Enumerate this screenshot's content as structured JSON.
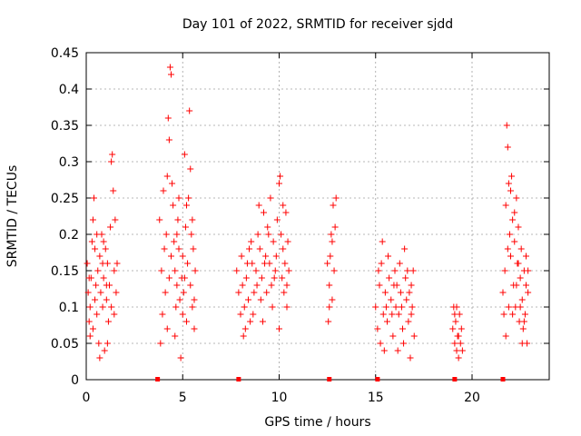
{
  "chart_data": {
    "type": "scatter",
    "title": "Day 101 of 2022, SRMTID for receiver sjdd",
    "xlabel": "GPS time / hours",
    "ylabel": "SRMTID / TECUs",
    "xlim": [
      0,
      24
    ],
    "ylim": [
      0,
      0.45
    ],
    "x_ticks": [
      0,
      5,
      10,
      15,
      20
    ],
    "x_tick_labels": [
      "0",
      "5",
      "10",
      "15",
      "20"
    ],
    "y_ticks": [
      0,
      0.05,
      0.1,
      0.15,
      0.2,
      0.25,
      0.3,
      0.35,
      0.4,
      0.45
    ],
    "y_tick_labels": [
      "0",
      "0.05",
      "0.1",
      "0.15",
      "0.2",
      "0.25",
      "0.3",
      "0.35",
      "0.4",
      "0.45"
    ],
    "grid": true,
    "marker": "plus",
    "series": [
      {
        "name": "SRMTID",
        "color": "#ff0000",
        "points": [
          [
            0.05,
            0.16
          ],
          [
            0.1,
            0.12
          ],
          [
            0.15,
            0.08
          ],
          [
            0.2,
            0.1
          ],
          [
            0.25,
            0.14
          ],
          [
            0.3,
            0.19
          ],
          [
            0.35,
            0.07
          ],
          [
            0.4,
            0.25
          ],
          [
            0.45,
            0.11
          ],
          [
            0.5,
            0.13
          ],
          [
            0.55,
            0.09
          ],
          [
            0.6,
            0.15
          ],
          [
            0.65,
            0.05
          ],
          [
            0.7,
            0.17
          ],
          [
            0.75,
            0.12
          ],
          [
            0.8,
            0.2
          ],
          [
            0.85,
            0.1
          ],
          [
            0.9,
            0.14
          ],
          [
            0.95,
            0.04
          ],
          [
            1.0,
            0.18
          ],
          [
            1.05,
            0.11
          ],
          [
            1.1,
            0.16
          ],
          [
            1.15,
            0.08
          ],
          [
            1.2,
            0.13
          ],
          [
            1.25,
            0.21
          ],
          [
            1.3,
            0.3
          ],
          [
            1.35,
            0.31
          ],
          [
            1.4,
            0.26
          ],
          [
            1.45,
            0.15
          ],
          [
            1.5,
            0.22
          ],
          [
            1.55,
            0.12
          ],
          [
            1.6,
            0.16
          ],
          [
            0.2,
            0.06
          ],
          [
            0.35,
            0.22
          ],
          [
            0.55,
            0.2
          ],
          [
            0.7,
            0.03
          ],
          [
            0.9,
            0.19
          ],
          [
            1.1,
            0.05
          ],
          [
            1.3,
            0.1
          ],
          [
            0.45,
            0.18
          ],
          [
            0.15,
            0.14
          ],
          [
            0.85,
            0.16
          ],
          [
            1.05,
            0.13
          ],
          [
            1.45,
            0.09
          ],
          [
            3.8,
            0.22
          ],
          [
            3.9,
            0.15
          ],
          [
            3.95,
            0.09
          ],
          [
            4.05,
            0.18
          ],
          [
            4.1,
            0.12
          ],
          [
            4.15,
            0.2
          ],
          [
            4.2,
            0.07
          ],
          [
            4.25,
            0.36
          ],
          [
            4.3,
            0.33
          ],
          [
            4.35,
            0.43
          ],
          [
            4.4,
            0.42
          ],
          [
            4.45,
            0.27
          ],
          [
            4.5,
            0.24
          ],
          [
            4.55,
            0.19
          ],
          [
            4.6,
            0.15
          ],
          [
            4.65,
            0.1
          ],
          [
            4.7,
            0.13
          ],
          [
            4.75,
            0.22
          ],
          [
            4.8,
            0.18
          ],
          [
            4.85,
            0.11
          ],
          [
            4.9,
            0.03
          ],
          [
            4.95,
            0.14
          ],
          [
            5.0,
            0.17
          ],
          [
            5.05,
            0.12
          ],
          [
            5.1,
            0.31
          ],
          [
            5.15,
            0.21
          ],
          [
            5.2,
            0.08
          ],
          [
            5.25,
            0.16
          ],
          [
            5.3,
            0.25
          ],
          [
            5.35,
            0.37
          ],
          [
            5.4,
            0.13
          ],
          [
            5.45,
            0.2
          ],
          [
            5.5,
            0.1
          ],
          [
            5.55,
            0.18
          ],
          [
            5.6,
            0.07
          ],
          [
            5.65,
            0.15
          ],
          [
            3.85,
            0.05
          ],
          [
            4.0,
            0.26
          ],
          [
            4.2,
            0.28
          ],
          [
            4.4,
            0.17
          ],
          [
            4.6,
            0.06
          ],
          [
            4.8,
            0.25
          ],
          [
            5.0,
            0.09
          ],
          [
            5.2,
            0.24
          ],
          [
            5.4,
            0.29
          ],
          [
            5.6,
            0.11
          ],
          [
            4.3,
            0.14
          ],
          [
            4.7,
            0.2
          ],
          [
            5.1,
            0.14
          ],
          [
            5.5,
            0.22
          ],
          [
            7.8,
            0.15
          ],
          [
            7.9,
            0.12
          ],
          [
            8.0,
            0.09
          ],
          [
            8.05,
            0.17
          ],
          [
            8.1,
            0.13
          ],
          [
            8.15,
            0.06
          ],
          [
            8.2,
            0.1
          ],
          [
            8.3,
            0.14
          ],
          [
            8.4,
            0.11
          ],
          [
            8.5,
            0.08
          ],
          [
            8.6,
            0.16
          ],
          [
            8.7,
            0.12
          ],
          [
            8.8,
            0.15
          ],
          [
            8.9,
            0.2
          ],
          [
            9.0,
            0.18
          ],
          [
            9.05,
            0.11
          ],
          [
            9.1,
            0.14
          ],
          [
            9.2,
            0.23
          ],
          [
            9.3,
            0.17
          ],
          [
            9.4,
            0.21
          ],
          [
            9.5,
            0.16
          ],
          [
            9.55,
            0.25
          ],
          [
            9.6,
            0.13
          ],
          [
            9.7,
            0.19
          ],
          [
            9.8,
            0.15
          ],
          [
            9.9,
            0.22
          ],
          [
            10.0,
            0.27
          ],
          [
            10.05,
            0.28
          ],
          [
            10.1,
            0.2
          ],
          [
            10.15,
            0.14
          ],
          [
            10.2,
            0.18
          ],
          [
            10.25,
            0.12
          ],
          [
            10.3,
            0.16
          ],
          [
            10.35,
            0.23
          ],
          [
            10.4,
            0.1
          ],
          [
            10.45,
            0.19
          ],
          [
            10.5,
            0.15
          ],
          [
            8.25,
            0.07
          ],
          [
            8.45,
            0.18
          ],
          [
            8.65,
            0.09
          ],
          [
            8.85,
            0.13
          ],
          [
            9.15,
            0.08
          ],
          [
            9.35,
            0.12
          ],
          [
            9.65,
            0.1
          ],
          [
            9.85,
            0.17
          ],
          [
            10.0,
            0.07
          ],
          [
            10.2,
            0.24
          ],
          [
            10.4,
            0.13
          ],
          [
            8.95,
            0.24
          ],
          [
            9.45,
            0.2
          ],
          [
            9.75,
            0.14
          ],
          [
            8.35,
            0.16
          ],
          [
            8.55,
            0.19
          ],
          [
            9.25,
            0.16
          ],
          [
            12.5,
            0.16
          ],
          [
            12.55,
            0.08
          ],
          [
            12.6,
            0.13
          ],
          [
            12.65,
            0.17
          ],
          [
            12.7,
            0.2
          ],
          [
            12.75,
            0.11
          ],
          [
            12.8,
            0.24
          ],
          [
            12.85,
            0.15
          ],
          [
            12.9,
            0.21
          ],
          [
            12.95,
            0.25
          ],
          [
            12.6,
            0.1
          ],
          [
            12.75,
            0.19
          ],
          [
            15.0,
            0.1
          ],
          [
            15.1,
            0.07
          ],
          [
            15.2,
            0.13
          ],
          [
            15.25,
            0.05
          ],
          [
            15.3,
            0.16
          ],
          [
            15.35,
            0.19
          ],
          [
            15.4,
            0.09
          ],
          [
            15.5,
            0.12
          ],
          [
            15.6,
            0.08
          ],
          [
            15.7,
            0.14
          ],
          [
            15.8,
            0.11
          ],
          [
            15.9,
            0.06
          ],
          [
            16.0,
            0.15
          ],
          [
            16.05,
            0.1
          ],
          [
            16.1,
            0.13
          ],
          [
            16.15,
            0.04
          ],
          [
            16.2,
            0.09
          ],
          [
            16.3,
            0.12
          ],
          [
            16.4,
            0.07
          ],
          [
            16.5,
            0.18
          ],
          [
            16.55,
            0.14
          ],
          [
            16.6,
            0.11
          ],
          [
            16.7,
            0.08
          ],
          [
            16.8,
            0.03
          ],
          [
            16.85,
            0.13
          ],
          [
            16.9,
            0.1
          ],
          [
            16.95,
            0.15
          ],
          [
            17.0,
            0.06
          ],
          [
            15.15,
            0.15
          ],
          [
            15.45,
            0.04
          ],
          [
            15.65,
            0.17
          ],
          [
            15.85,
            0.09
          ],
          [
            16.25,
            0.16
          ],
          [
            16.45,
            0.05
          ],
          [
            16.65,
            0.15
          ],
          [
            16.75,
            0.12
          ],
          [
            15.55,
            0.1
          ],
          [
            16.35,
            0.1
          ],
          [
            15.95,
            0.13
          ],
          [
            16.85,
            0.09
          ],
          [
            19.0,
            0.07
          ],
          [
            19.05,
            0.1
          ],
          [
            19.1,
            0.05
          ],
          [
            19.15,
            0.08
          ],
          [
            19.2,
            0.04
          ],
          [
            19.25,
            0.06
          ],
          [
            19.3,
            0.03
          ],
          [
            19.35,
            0.09
          ],
          [
            19.4,
            0.05
          ],
          [
            19.45,
            0.07
          ],
          [
            19.5,
            0.04
          ],
          [
            19.1,
            0.09
          ],
          [
            19.3,
            0.06
          ],
          [
            19.2,
            0.1
          ],
          [
            21.6,
            0.12
          ],
          [
            21.65,
            0.09
          ],
          [
            21.7,
            0.15
          ],
          [
            21.75,
            0.24
          ],
          [
            21.8,
            0.35
          ],
          [
            21.85,
            0.32
          ],
          [
            21.9,
            0.27
          ],
          [
            21.95,
            0.2
          ],
          [
            22.0,
            0.17
          ],
          [
            22.05,
            0.28
          ],
          [
            22.1,
            0.22
          ],
          [
            22.15,
            0.13
          ],
          [
            22.2,
            0.19
          ],
          [
            22.25,
            0.1
          ],
          [
            22.3,
            0.25
          ],
          [
            22.35,
            0.16
          ],
          [
            22.4,
            0.21
          ],
          [
            22.45,
            0.08
          ],
          [
            22.5,
            0.14
          ],
          [
            22.55,
            0.18
          ],
          [
            22.6,
            0.11
          ],
          [
            22.65,
            0.07
          ],
          [
            22.7,
            0.15
          ],
          [
            22.75,
            0.09
          ],
          [
            22.8,
            0.13
          ],
          [
            22.85,
            0.05
          ],
          [
            22.9,
            0.12
          ],
          [
            21.75,
            0.06
          ],
          [
            21.9,
            0.1
          ],
          [
            22.0,
            0.26
          ],
          [
            22.2,
            0.23
          ],
          [
            22.4,
            0.16
          ],
          [
            22.6,
            0.05
          ],
          [
            22.8,
            0.17
          ],
          [
            21.85,
            0.18
          ],
          [
            22.1,
            0.09
          ],
          [
            22.3,
            0.13
          ],
          [
            22.5,
            0.1
          ],
          [
            22.7,
            0.08
          ],
          [
            22.9,
            0.15
          ]
        ]
      }
    ],
    "bottom_markers": {
      "color": "#ff0000",
      "x": [
        3.7,
        7.9,
        12.6,
        15.1,
        19.1,
        21.6
      ]
    }
  }
}
